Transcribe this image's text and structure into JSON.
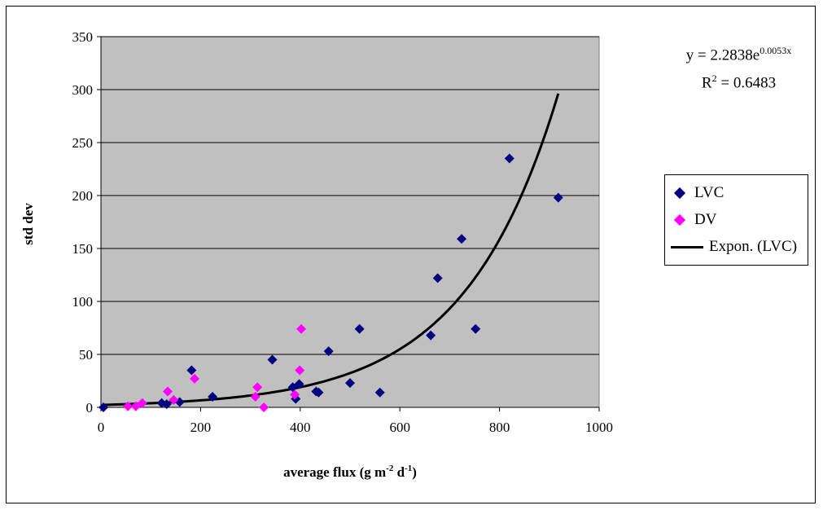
{
  "chart_data": {
    "type": "scatter",
    "xlabel": "average flux (g m-2 d-1)",
    "xlabel_parts": {
      "base": "average flux (g m",
      "sup1": "-2",
      "mid": " d",
      "sup2": "-1",
      "end": ")"
    },
    "ylabel": "std dev",
    "xlim": [
      0,
      1000
    ],
    "ylim": [
      0,
      350
    ],
    "xticks": [
      "0",
      "200",
      "400",
      "600",
      "800",
      "1000"
    ],
    "yticks": [
      "0",
      "50",
      "100",
      "150",
      "200",
      "250",
      "300",
      "350"
    ],
    "grid": "horizontal",
    "plot_background": "#c0c0c0",
    "legend_position": "right",
    "series": [
      {
        "name": "LVC",
        "marker": "diamond",
        "color": "#000080",
        "points": [
          [
            5,
            0
          ],
          [
            122,
            4
          ],
          [
            132,
            3
          ],
          [
            158,
            5
          ],
          [
            182,
            35
          ],
          [
            224,
            10
          ],
          [
            344,
            45
          ],
          [
            385,
            19
          ],
          [
            391,
            8
          ],
          [
            398,
            22
          ],
          [
            432,
            15
          ],
          [
            437,
            14
          ],
          [
            457,
            53
          ],
          [
            500,
            23
          ],
          [
            519,
            74
          ],
          [
            560,
            14
          ],
          [
            662,
            68
          ],
          [
            676,
            122
          ],
          [
            724,
            159
          ],
          [
            752,
            74
          ],
          [
            820,
            235
          ],
          [
            918,
            198
          ]
        ]
      },
      {
        "name": "DV",
        "marker": "diamond",
        "color": "#ff00ff",
        "points": [
          [
            54,
            1
          ],
          [
            70,
            1
          ],
          [
            83,
            4
          ],
          [
            134,
            15
          ],
          [
            146,
            7
          ],
          [
            188,
            27
          ],
          [
            310,
            10
          ],
          [
            314,
            19
          ],
          [
            327,
            0
          ],
          [
            389,
            12
          ],
          [
            399,
            35
          ],
          [
            402,
            74
          ]
        ]
      }
    ],
    "trendline": {
      "name": "Expon. (LVC)",
      "color": "#000000",
      "a": 2.2838,
      "b": 0.0053,
      "x_range": [
        5,
        918
      ],
      "equation_prefix": "y = 2.2838e",
      "equation_exponent": "0.0053x",
      "r2_prefix": "R",
      "r2_sup": "2",
      "r2_suffix": " = 0.6483"
    }
  }
}
